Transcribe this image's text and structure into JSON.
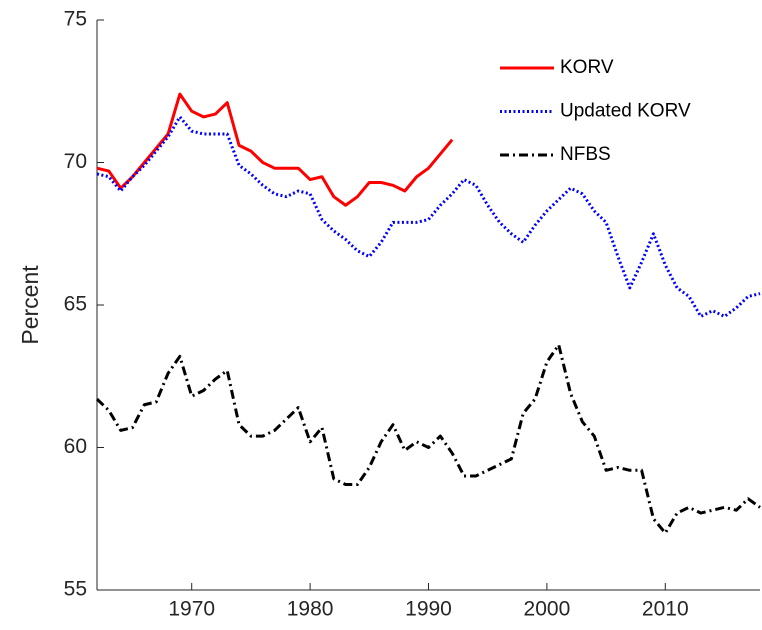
{
  "chart_data": {
    "type": "line",
    "y_label": "Percent",
    "x": [
      1962,
      1963,
      1964,
      1965,
      1966,
      1967,
      1968,
      1969,
      1970,
      1971,
      1972,
      1973,
      1974,
      1975,
      1976,
      1977,
      1978,
      1979,
      1980,
      1981,
      1982,
      1983,
      1984,
      1985,
      1986,
      1987,
      1988,
      1989,
      1990,
      1991,
      1992,
      1993,
      1994,
      1995,
      1996,
      1997,
      1998,
      1999,
      2000,
      2001,
      2002,
      2003,
      2004,
      2005,
      2006,
      2007,
      2008,
      2009,
      2010,
      2011,
      2012,
      2013,
      2014,
      2015,
      2016,
      2017,
      2018
    ],
    "series": [
      {
        "name": "KORV",
        "color": "#ff0000",
        "dash": "solid",
        "values": [
          69.8,
          69.7,
          69.1,
          69.5,
          70.0,
          70.5,
          71.0,
          72.4,
          71.8,
          71.6,
          71.7,
          72.1,
          70.6,
          70.4,
          70.0,
          69.8,
          69.8,
          69.8,
          69.4,
          69.5,
          68.8,
          68.5,
          68.8,
          69.3,
          69.3,
          69.2,
          69.0,
          69.5,
          69.8,
          70.3,
          70.8,
          null,
          null,
          null,
          null,
          null,
          null,
          null,
          null,
          null,
          null,
          null,
          null,
          null,
          null,
          null,
          null,
          null,
          null,
          null,
          null,
          null,
          null,
          null,
          null,
          null,
          null
        ]
      },
      {
        "name": "Updated KORV",
        "color": "#0000ff",
        "dash": "dotted",
        "values": [
          69.6,
          69.5,
          69.0,
          69.5,
          69.9,
          70.4,
          70.9,
          71.6,
          71.1,
          71.0,
          71.0,
          71.0,
          69.9,
          69.6,
          69.2,
          68.9,
          68.8,
          69.0,
          68.9,
          68.0,
          67.6,
          67.3,
          66.9,
          66.7,
          67.2,
          67.9,
          67.9,
          67.9,
          68.0,
          68.5,
          68.9,
          69.4,
          69.2,
          68.5,
          67.9,
          67.5,
          67.2,
          67.8,
          68.3,
          68.7,
          69.1,
          68.9,
          68.3,
          67.9,
          66.7,
          65.6,
          66.5,
          67.5,
          66.4,
          65.6,
          65.3,
          64.6,
          64.8,
          64.6,
          64.9,
          65.3,
          65.4
        ]
      },
      {
        "name": "NFBS",
        "color": "#000000",
        "dash": "dashdot",
        "values": [
          61.7,
          61.3,
          60.6,
          60.7,
          61.5,
          61.6,
          62.6,
          63.2,
          61.8,
          62.0,
          62.4,
          62.7,
          60.8,
          60.4,
          60.4,
          60.6,
          61.0,
          61.4,
          60.2,
          60.7,
          58.9,
          58.7,
          58.7,
          59.3,
          60.2,
          60.8,
          59.9,
          60.2,
          60.0,
          60.4,
          59.8,
          59.0,
          59.0,
          59.2,
          59.4,
          59.6,
          61.2,
          61.7,
          63.0,
          63.6,
          61.9,
          60.9,
          60.4,
          59.2,
          59.3,
          59.2,
          59.2,
          57.5,
          57.0,
          57.7,
          57.9,
          57.7,
          57.8,
          57.9,
          57.8,
          58.2,
          57.9
        ]
      }
    ],
    "xlim": [
      1962,
      2018
    ],
    "xticks": [
      1970,
      1980,
      1990,
      2000,
      2010
    ],
    "ylim": [
      55,
      75
    ],
    "yticks": [
      55,
      60,
      65,
      70,
      75
    ],
    "legend": "top-right"
  }
}
